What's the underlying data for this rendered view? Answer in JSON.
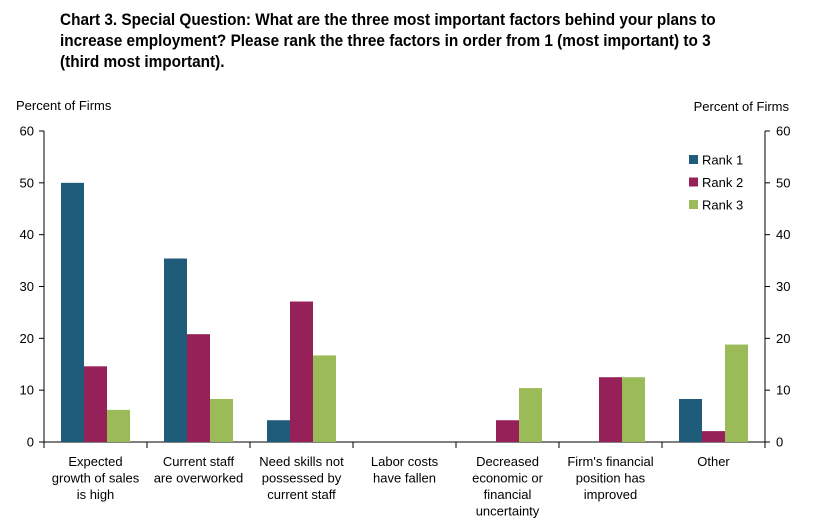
{
  "chart_data": {
    "type": "bar",
    "title": "Chart 3. Special Question: What are the three most important factors behind your plans to increase employment? Please rank the three factors in order from 1 (most important) to 3 (third most important).",
    "ylabel_left": "Percent of Firms",
    "ylabel_right": "Percent of Firms",
    "ylim": [
      0,
      60
    ],
    "yticks": [
      0,
      10,
      20,
      30,
      40,
      50,
      60
    ],
    "categories": [
      [
        "Expected",
        "growth of sales",
        "is high"
      ],
      [
        "Current staff",
        "are overworked"
      ],
      [
        "Need skills not",
        "possessed by",
        "current staff"
      ],
      [
        "Labor costs",
        "have fallen"
      ],
      [
        "Decreased",
        "economic or",
        "financial",
        "uncertainty"
      ],
      [
        "Firm's financial",
        "position has",
        "improved"
      ],
      [
        "Other"
      ]
    ],
    "series": [
      {
        "name": "Rank 1",
        "color": "#1f5c7a",
        "values": [
          50,
          35.4,
          4.2,
          0,
          0,
          0,
          8.3
        ]
      },
      {
        "name": "Rank 2",
        "color": "#952158",
        "values": [
          14.6,
          20.8,
          27.1,
          0,
          4.2,
          12.5,
          2.1
        ]
      },
      {
        "name": "Rank 3",
        "color": "#9bbb59",
        "values": [
          6.2,
          8.3,
          16.7,
          0,
          10.4,
          12.5,
          18.8
        ]
      }
    ],
    "legend_position": "top-right",
    "grid": false
  }
}
